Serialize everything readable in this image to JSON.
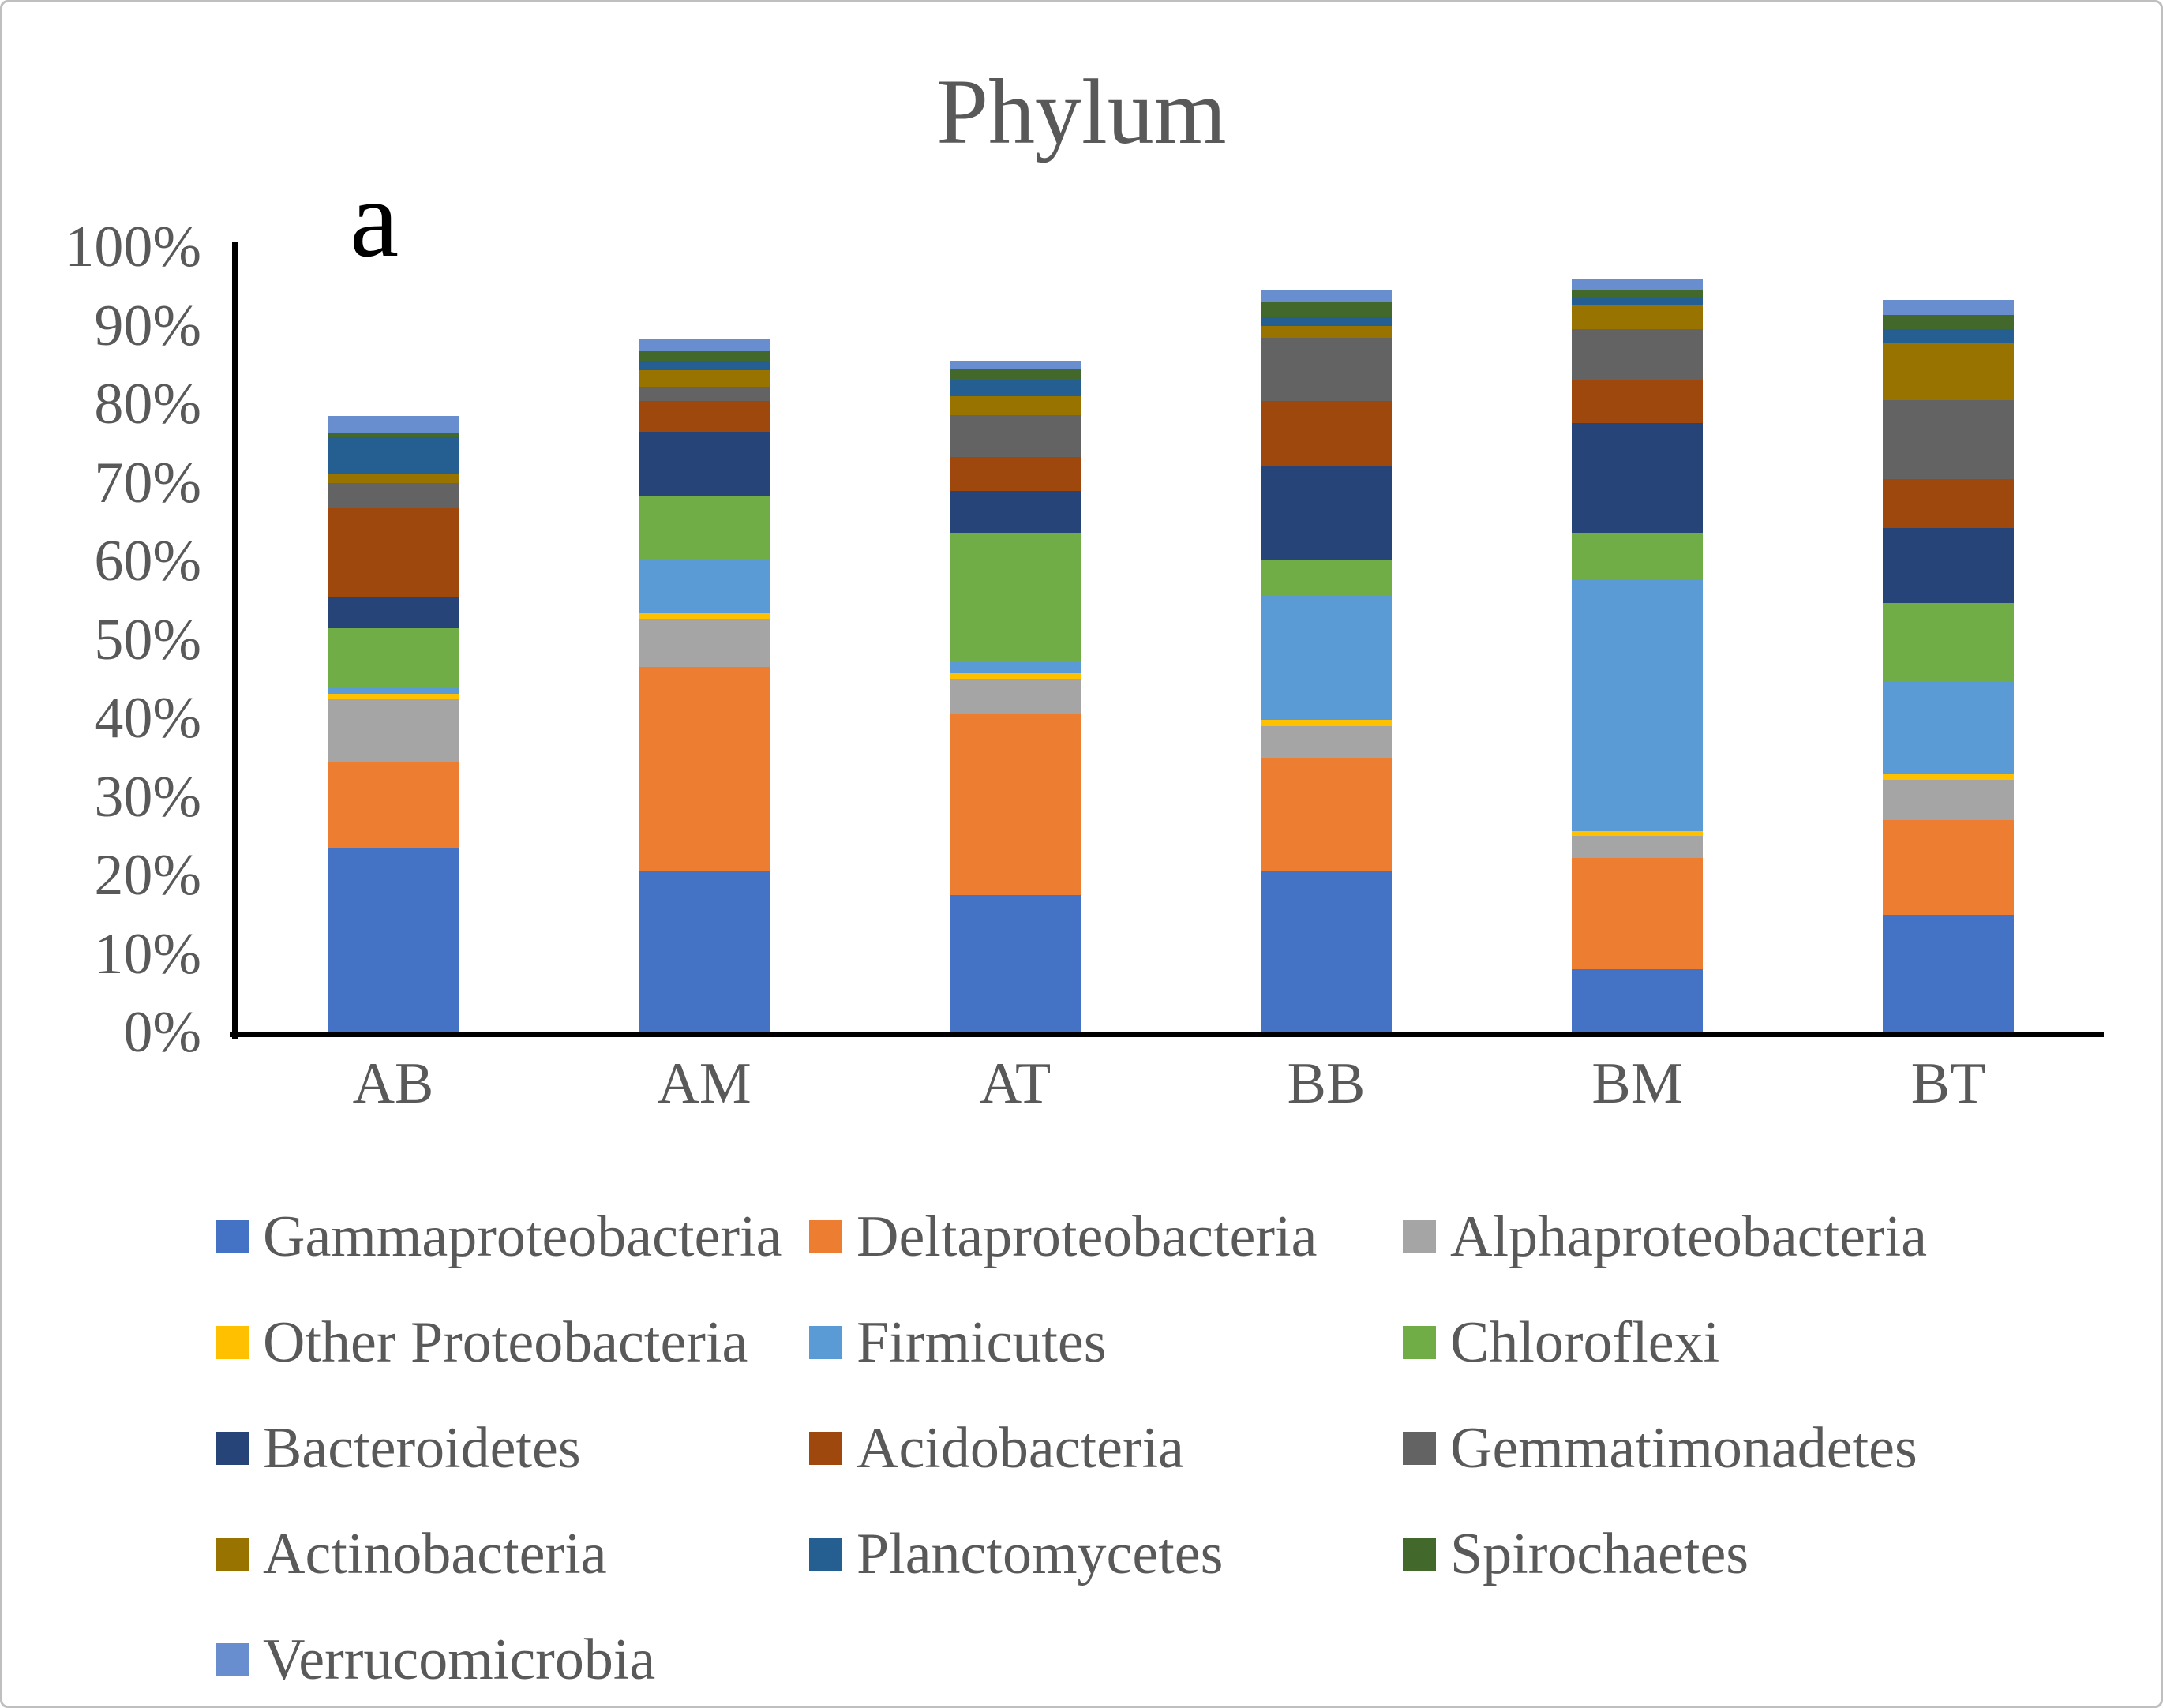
{
  "title": "Phylum",
  "panel_label": "a",
  "colors": {
    "text": "#595959",
    "axis": "#000000",
    "frame_border": "#bfbfbf",
    "background": "#ffffff"
  },
  "y_axis": {
    "ticks": [
      {
        "label": "100%",
        "value": 100
      },
      {
        "label": "90%",
        "value": 90
      },
      {
        "label": "80%",
        "value": 80
      },
      {
        "label": "70%",
        "value": 70
      },
      {
        "label": "60%",
        "value": 60
      },
      {
        "label": "50%",
        "value": 50
      },
      {
        "label": "40%",
        "value": 40
      },
      {
        "label": "30%",
        "value": 30
      },
      {
        "label": "20%",
        "value": 20
      },
      {
        "label": "10%",
        "value": 10
      },
      {
        "label": "0%",
        "value": 0
      }
    ]
  },
  "chart_data": {
    "type": "bar",
    "subtype": "stacked-percent",
    "title": "Phylum",
    "xlabel": "",
    "ylabel": "",
    "ylim": [
      0,
      100
    ],
    "grid": false,
    "legend_position": "bottom",
    "categories": [
      "AB",
      "AM",
      "AT",
      "BB",
      "BM",
      "BT"
    ],
    "series": [
      {
        "name": "Gammaproteobacteria",
        "color": "#4472C4",
        "values": [
          23.5,
          20.5,
          17.5,
          20.5,
          8.0,
          15.0
        ]
      },
      {
        "name": "Deltaproteobacteria",
        "color": "#ED7D31",
        "values": [
          11.0,
          26.0,
          23.0,
          14.5,
          14.2,
          12.0
        ]
      },
      {
        "name": "Alphaproteobacteria",
        "color": "#A5A5A5",
        "values": [
          8.0,
          6.2,
          4.5,
          4.0,
          2.8,
          5.2
        ]
      },
      {
        "name": "Other Proteobacteria",
        "color": "#FFC000",
        "values": [
          0.6,
          0.7,
          0.7,
          0.8,
          0.6,
          0.7
        ]
      },
      {
        "name": "Firmicutes",
        "color": "#5B9BD5",
        "values": [
          0.7,
          6.7,
          1.4,
          15.8,
          32.2,
          11.8
        ]
      },
      {
        "name": "Chloroflexi",
        "color": "#70AD47",
        "values": [
          7.7,
          8.2,
          16.5,
          4.5,
          5.8,
          10.0
        ]
      },
      {
        "name": "Bacteroidetes",
        "color": "#264478",
        "values": [
          4.0,
          8.2,
          5.3,
          12.0,
          14.0,
          9.5
        ]
      },
      {
        "name": "Acidobacteria",
        "color": "#9E480E",
        "values": [
          11.2,
          3.9,
          4.4,
          8.3,
          5.5,
          6.3
        ]
      },
      {
        "name": "Gemmatimonadetes",
        "color": "#636363",
        "values": [
          3.3,
          1.8,
          5.3,
          8.0,
          6.5,
          10.0
        ]
      },
      {
        "name": "Actinobacteria",
        "color": "#997300",
        "values": [
          1.2,
          2.1,
          2.4,
          1.6,
          3.1,
          7.3
        ]
      },
      {
        "name": "Planctomycetes",
        "color": "#255E91",
        "values": [
          4.6,
          1.2,
          2.0,
          1.1,
          0.9,
          1.8
        ]
      },
      {
        "name": "Spirochaetes",
        "color": "#43682B",
        "values": [
          0.5,
          1.2,
          1.4,
          1.9,
          0.9,
          1.8
        ]
      },
      {
        "name": "Verrucomicrobia",
        "color": "#698ED0",
        "values": [
          2.2,
          1.6,
          1.1,
          1.6,
          1.4,
          1.9
        ]
      }
    ],
    "stack_totals": [
      78.5,
      88.3,
      85.5,
      94.6,
      95.9,
      93.3
    ]
  }
}
